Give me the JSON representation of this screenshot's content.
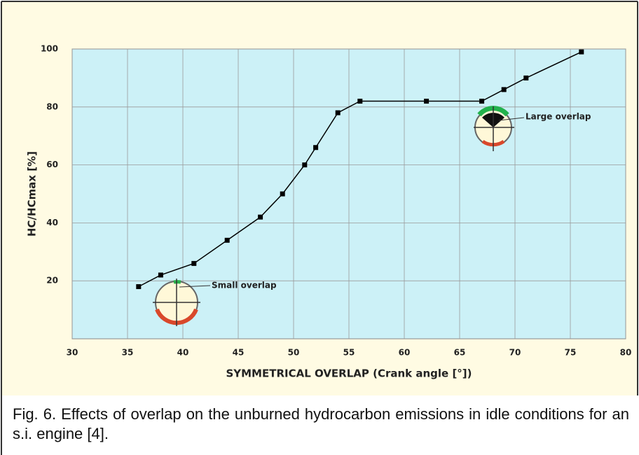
{
  "chart_data": {
    "type": "line",
    "x_label": "SYMMETRICAL OVERLAP (Crank angle  [°])",
    "y_label": "HC/HCmax  [%]",
    "x": [
      36,
      38,
      41,
      44,
      47,
      49,
      51,
      52,
      54,
      56,
      62,
      67,
      69,
      71,
      76
    ],
    "series": [
      {
        "color": "#000000",
        "values": [
          18,
          22,
          26,
          34,
          42,
          50,
          60,
          66,
          78,
          82,
          82,
          82,
          86,
          90,
          99
        ]
      }
    ],
    "xlim": [
      30,
      80
    ],
    "xticks": [
      30,
      35,
      40,
      45,
      50,
      55,
      60,
      65,
      70,
      75,
      80
    ],
    "ylim": [
      0,
      100
    ],
    "yticks": [
      20,
      40,
      60,
      80,
      100
    ],
    "grid": true,
    "annotations": [
      "Small overlap",
      "Large overlap"
    ],
    "caption": "Fig. 6.  Effects of overlap on the unburned hydrocarbon emissions in idle conditions for an s.i. engine [4]."
  }
}
